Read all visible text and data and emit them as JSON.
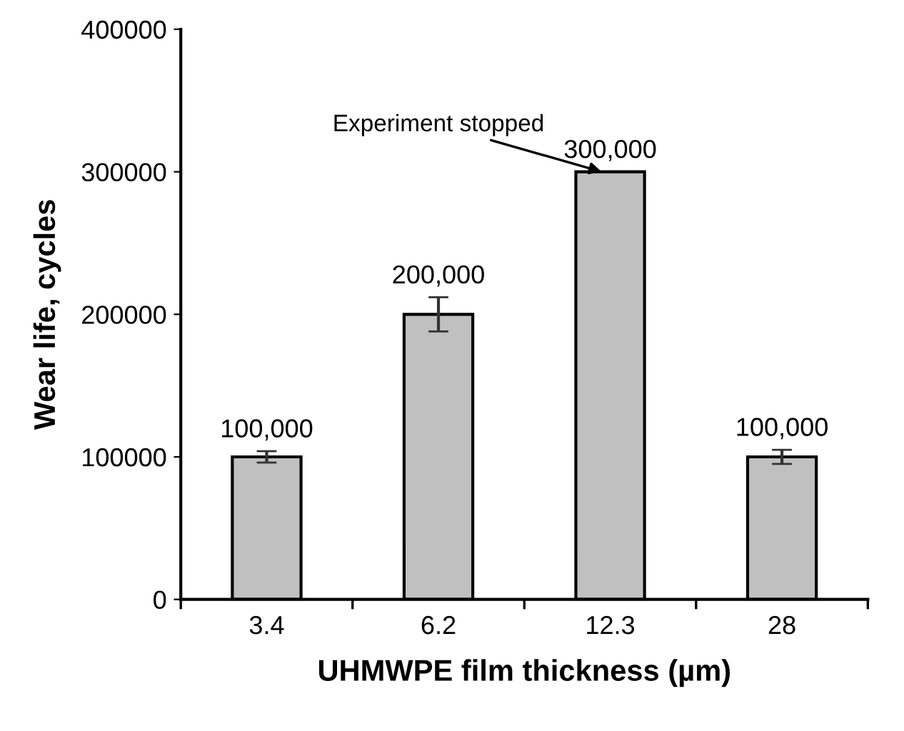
{
  "chart_data": {
    "type": "bar",
    "xlabel": "UHMWPE film thickness (µm)",
    "ylabel": "Wear life, cycles",
    "categories": [
      "3.4",
      "6.2",
      "12.3",
      "28"
    ],
    "values": [
      100000,
      200000,
      300000,
      100000
    ],
    "errors": [
      4000,
      12000,
      null,
      5000
    ],
    "value_labels": [
      "100,000",
      "200,000",
      "300,000",
      "100,000"
    ],
    "color": "#c0c0c0",
    "ylim": [
      0,
      400000
    ],
    "yticks": [
      0,
      100000,
      200000,
      300000,
      400000
    ],
    "annotations": [
      {
        "text": "Experiment stopped",
        "x": "12.3",
        "y": 300000
      }
    ],
    "grid": false,
    "legend": false
  }
}
